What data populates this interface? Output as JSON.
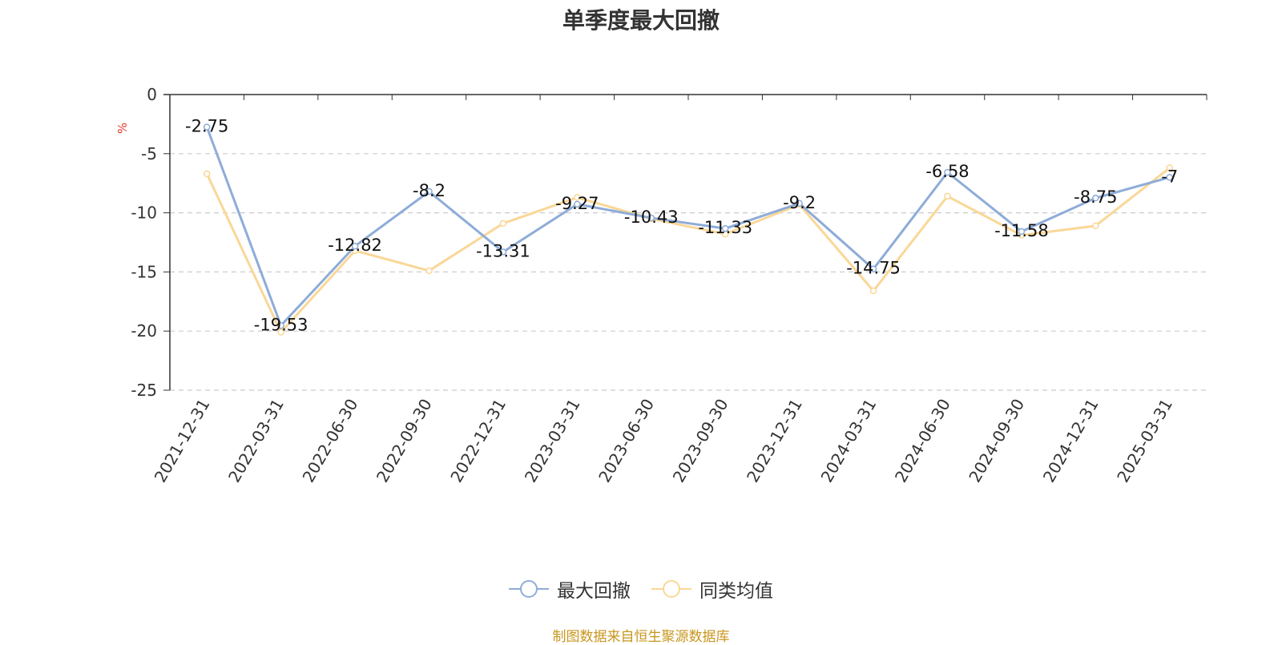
{
  "chart_data": {
    "type": "line",
    "title": "单季度最大回撤",
    "ylabel": "%",
    "ylim": [
      -25,
      0
    ],
    "yticks": [
      0,
      -5,
      -10,
      -15,
      -20,
      -25
    ],
    "grid": true,
    "legend_position": "bottom-center",
    "categories": [
      "2021-12-31",
      "2022-03-31",
      "2022-06-30",
      "2022-09-30",
      "2022-12-31",
      "2023-03-31",
      "2023-06-30",
      "2023-09-30",
      "2023-12-31",
      "2024-03-31",
      "2024-06-30",
      "2024-09-30",
      "2024-12-31",
      "2025-03-31"
    ],
    "series": [
      {
        "name": "最大回撤",
        "color": "#8eacd8",
        "values": [
          -2.75,
          -19.53,
          -12.82,
          -8.2,
          -13.31,
          -9.27,
          -10.43,
          -11.33,
          -9.2,
          -14.75,
          -6.58,
          -11.58,
          -8.75,
          -7
        ],
        "data_labels": [
          "-2.75",
          "-19.53",
          "-12.82",
          "-8.2",
          "-13.31",
          "-9.27",
          "-10.43",
          "-11.33",
          "-9.2",
          "-14.75",
          "-6.58",
          "-11.58",
          "-8.75",
          "-7"
        ]
      },
      {
        "name": "同类均值",
        "color": "#fad797",
        "values": [
          -6.7,
          -20.1,
          -13.2,
          -14.9,
          -10.9,
          -8.7,
          -10.5,
          -11.8,
          -9.3,
          -16.6,
          -8.6,
          -11.9,
          -11.1,
          -6.2
        ]
      }
    ]
  },
  "source_note": "制图数据来自恒生聚源数据库"
}
